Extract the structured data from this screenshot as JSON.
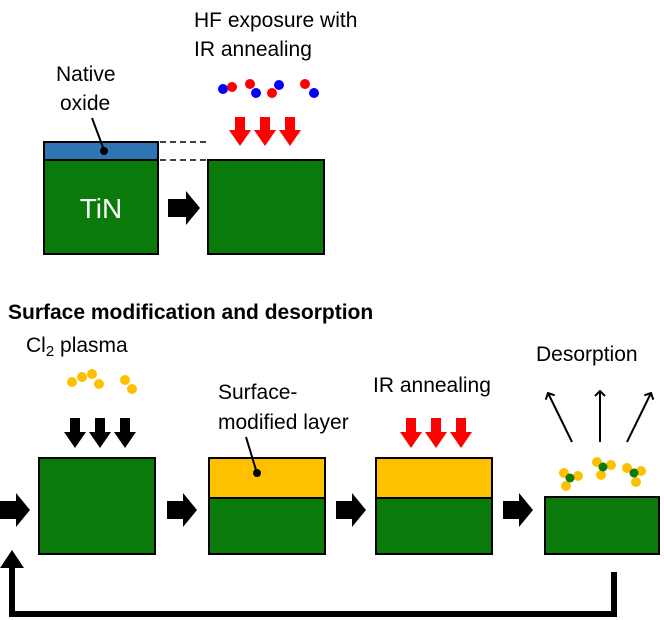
{
  "top_section": {
    "native_oxide_label_line1": "Native",
    "native_oxide_label_line2": "oxide",
    "material_label": "TiN",
    "hf_label_line1": "HF exposure with",
    "hf_label_line2": "IR annealing"
  },
  "bottom_section": {
    "title": "Surface modification and desorption",
    "plasma_label_main": "Cl",
    "plasma_label_sub": "2",
    "plasma_label_rest": " plasma",
    "modified_layer_label_line1": "Surface-",
    "modified_layer_label_line2": "modified layer",
    "ir_label": "IR annealing",
    "desorption_label": "Desorption"
  },
  "colors": {
    "substrate_green": "#0a7a0a",
    "oxide_blue": "#2e75b6",
    "modified_yellow": "#ffc000",
    "arrow_red": "#ff0000",
    "molecule_red": "#ff0000",
    "molecule_blue": "#0000ff",
    "chlorine_yellow": "#ffc000",
    "arrow_black": "#000000"
  },
  "icons": {
    "process_arrow": "right-arrow-icon",
    "exposure_arrow": "down-arrow-icon",
    "desorption_arrow": "up-arrow-icon",
    "loop": "return-loop-arrow-icon"
  }
}
